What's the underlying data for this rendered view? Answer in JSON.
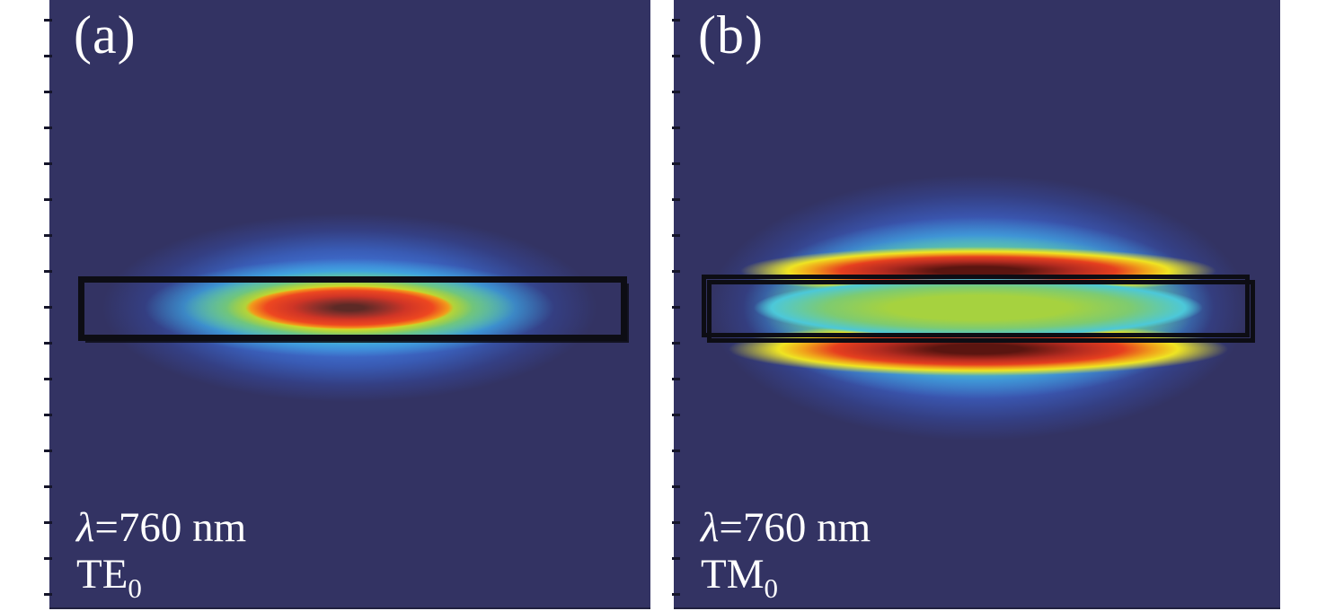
{
  "figure": {
    "kind": "simulated optical mode intensity profiles of a slab waveguide",
    "colormap": "jet",
    "colors": {
      "page_background": "#ffffff",
      "panel_background": "#333363",
      "waveguide_outline": "#0d0d14",
      "text": "#ffffff",
      "mode_peak": "#5c2a26",
      "mode_red": "#d03526",
      "mode_yellow": "#f1e421",
      "mode_green": "#8cc73f",
      "mode_cyan": "#40c6e8",
      "mode_blue": "#3f6fd0"
    },
    "panels": [
      {
        "corner_label": "(a)",
        "lambda_symbol": "λ",
        "wavelength_text": "=760 nm",
        "mode_name": "TE",
        "mode_subscript": "0",
        "mode_profile": "single elliptical intensity maximum centered inside the rectangular waveguide core"
      },
      {
        "corner_label": "(b)",
        "lambda_symbol": "λ",
        "wavelength_text": "=760 nm",
        "mode_name": "TM",
        "mode_subscript": "0",
        "mode_profile": "intensity maxima concentrated just above and below the waveguide boundaries with a green plateau inside the core"
      }
    ]
  }
}
